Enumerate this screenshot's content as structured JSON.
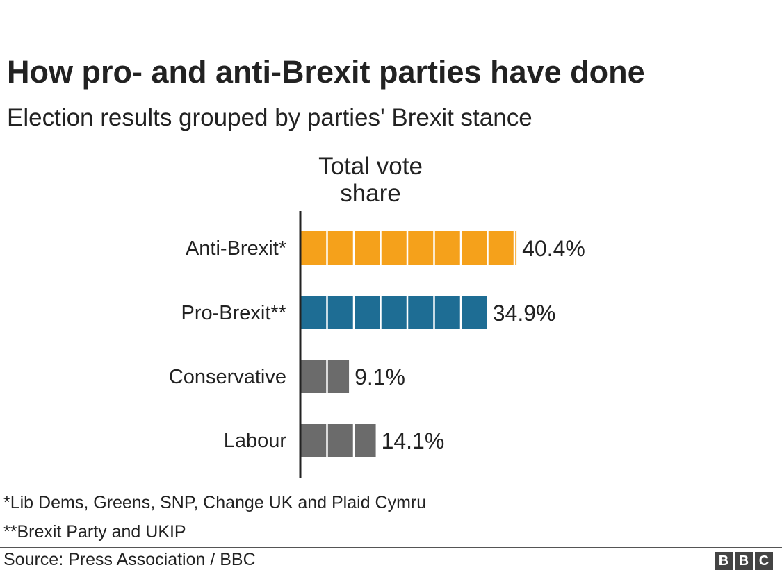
{
  "header": {
    "title": "How pro- and anti-Brexit parties have done",
    "subtitle": "Election results grouped by parties' Brexit stance"
  },
  "chart_data": {
    "type": "bar",
    "orientation": "horizontal",
    "title": "How pro- and anti-Brexit parties have done",
    "subtitle": "Election results grouped by parties' Brexit stance",
    "value_label": "Total vote share",
    "categories": [
      "Anti-Brexit*",
      "Pro-Brexit**",
      "Conservative",
      "Labour"
    ],
    "values": [
      40.4,
      34.9,
      9.1,
      14.1
    ],
    "value_labels": [
      "40.4%",
      "34.9%",
      "9.1%",
      "14.1%"
    ],
    "colors": [
      "#f5a11b",
      "#1e6d94",
      "#6b6b6b",
      "#6b6b6b"
    ],
    "unit_block_size": 5,
    "xlim": [
      0,
      45
    ],
    "grid": false,
    "legend": "none"
  },
  "footnotes": {
    "anti": "*Lib Dems, Greens, SNP, Change UK and Plaid Cymru",
    "pro": "**Brexit Party and UKIP"
  },
  "footer": {
    "source": "Source: Press Association / BBC",
    "logo_letters": [
      "B",
      "B",
      "C"
    ]
  }
}
